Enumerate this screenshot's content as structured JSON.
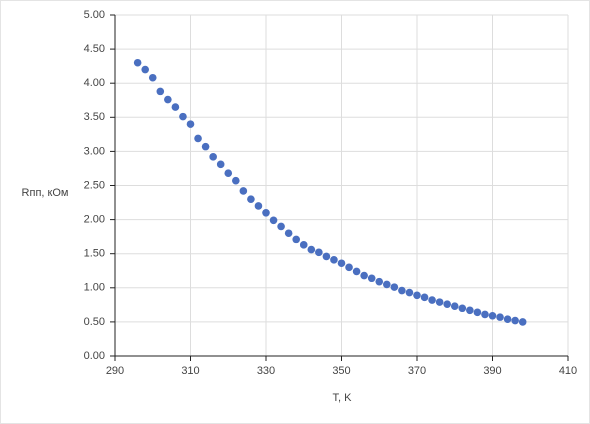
{
  "chart_data": {
    "type": "scatter",
    "x_label": "T, K",
    "y_label": "Rпп, кОм",
    "x": [
      296,
      298,
      300,
      302,
      304,
      306,
      308,
      310,
      312,
      314,
      316,
      318,
      320,
      322,
      324,
      326,
      328,
      330,
      332,
      334,
      336,
      338,
      340,
      342,
      344,
      346,
      348,
      350,
      352,
      354,
      356,
      358,
      360,
      362,
      364,
      366,
      368,
      370,
      372,
      374,
      376,
      378,
      380,
      382,
      384,
      386,
      388,
      390,
      392,
      394,
      396,
      398
    ],
    "values": [
      4.3,
      4.2,
      4.08,
      3.88,
      3.76,
      3.65,
      3.51,
      3.4,
      3.19,
      3.07,
      2.92,
      2.81,
      2.68,
      2.57,
      2.42,
      2.3,
      2.2,
      2.1,
      1.99,
      1.9,
      1.8,
      1.71,
      1.63,
      1.56,
      1.52,
      1.46,
      1.41,
      1.36,
      1.3,
      1.24,
      1.18,
      1.14,
      1.09,
      1.05,
      1.01,
      0.96,
      0.93,
      0.89,
      0.86,
      0.82,
      0.79,
      0.76,
      0.73,
      0.7,
      0.67,
      0.64,
      0.61,
      0.59,
      0.57,
      0.54,
      0.52,
      0.5
    ],
    "color": "#4a6fc0",
    "xlim": [
      290,
      410
    ],
    "xticks": [
      290,
      310,
      330,
      350,
      370,
      390,
      410
    ],
    "ylim": [
      0,
      5
    ],
    "yticks": [
      {
        "value": 0,
        "label": "0.00"
      },
      {
        "value": 0.5,
        "label": "0.50"
      },
      {
        "value": 1,
        "label": "1.00"
      },
      {
        "value": 1.5,
        "label": "1.50"
      },
      {
        "value": 2,
        "label": "2.00"
      },
      {
        "value": 2.5,
        "label": "2.50"
      },
      {
        "value": 3,
        "label": "3.00"
      },
      {
        "value": 3.5,
        "label": "3.50"
      },
      {
        "value": 4,
        "label": "4.00"
      },
      {
        "value": 4.5,
        "label": "4.50"
      },
      {
        "value": 5,
        "label": "5.00"
      }
    ],
    "grid": true
  }
}
